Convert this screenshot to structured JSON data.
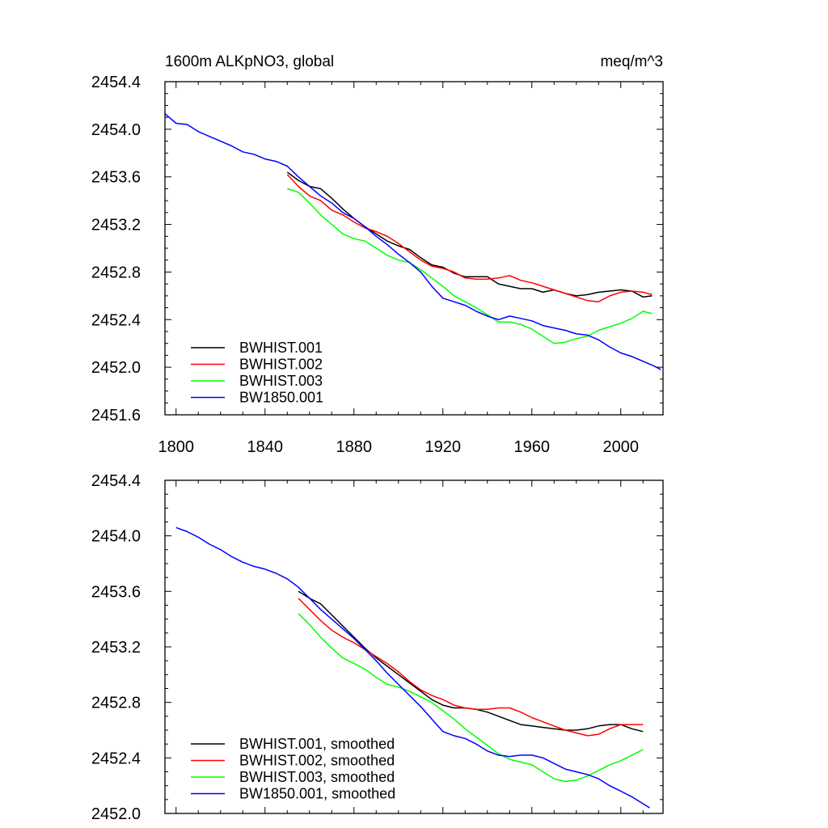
{
  "chart_data": [
    {
      "type": "line",
      "title": "1600m ALKpNO3, global",
      "units": "meq/m^3",
      "xlim": [
        1795,
        2019
      ],
      "ylim": [
        2451.6,
        2454.4
      ],
      "x_ticks": [
        1800,
        1840,
        1880,
        1920,
        1960,
        2000
      ],
      "x_tick_labels": [
        "1800",
        "1840",
        "1880",
        "1920",
        "1960",
        "2000"
      ],
      "y_ticks": [
        2451.6,
        2452.0,
        2452.4,
        2452.8,
        2453.2,
        2453.6,
        2454.0,
        2454.4
      ],
      "y_tick_labels": [
        "2451.6",
        "2452.0",
        "2452.4",
        "2452.8",
        "2453.2",
        "2453.6",
        "2454.0",
        "2454.4"
      ],
      "legend_position": "bottom-left",
      "series": [
        {
          "name": "BWHIST.001",
          "color": "#000000",
          "x": [
            1850,
            1855,
            1860,
            1865,
            1870,
            1875,
            1880,
            1885,
            1890,
            1895,
            1900,
            1905,
            1910,
            1915,
            1920,
            1925,
            1930,
            1935,
            1940,
            1945,
            1950,
            1955,
            1960,
            1965,
            1970,
            1975,
            1980,
            1985,
            1990,
            1995,
            2000,
            2005,
            2010,
            2014
          ],
          "y": [
            2453.64,
            2453.57,
            2453.52,
            2453.5,
            2453.42,
            2453.33,
            2453.25,
            2453.18,
            2453.12,
            2453.06,
            2453.02,
            2452.99,
            2452.92,
            2452.86,
            2452.84,
            2452.79,
            2452.76,
            2452.76,
            2452.76,
            2452.7,
            2452.68,
            2452.66,
            2452.66,
            2452.63,
            2452.65,
            2452.62,
            2452.6,
            2452.61,
            2452.63,
            2452.64,
            2452.65,
            2452.64,
            2452.59,
            2452.6
          ]
        },
        {
          "name": "BWHIST.002",
          "color": "#ff0000",
          "x": [
            1850,
            1855,
            1860,
            1865,
            1870,
            1875,
            1880,
            1885,
            1890,
            1895,
            1900,
            1905,
            1910,
            1915,
            1920,
            1925,
            1930,
            1935,
            1940,
            1945,
            1950,
            1955,
            1960,
            1965,
            1970,
            1975,
            1980,
            1985,
            1990,
            1995,
            2000,
            2005,
            2010,
            2014
          ],
          "y": [
            2453.62,
            2453.52,
            2453.44,
            2453.4,
            2453.32,
            2453.28,
            2453.22,
            2453.17,
            2453.14,
            2453.1,
            2453.04,
            2452.97,
            2452.9,
            2452.85,
            2452.83,
            2452.8,
            2452.75,
            2452.74,
            2452.74,
            2452.75,
            2452.77,
            2452.73,
            2452.71,
            2452.68,
            2452.65,
            2452.62,
            2452.59,
            2452.56,
            2452.55,
            2452.6,
            2452.63,
            2452.64,
            2452.63,
            2452.61
          ]
        },
        {
          "name": "BWHIST.003",
          "color": "#00ff00",
          "x": [
            1850,
            1855,
            1860,
            1865,
            1870,
            1875,
            1880,
            1885,
            1890,
            1895,
            1900,
            1905,
            1910,
            1915,
            1920,
            1925,
            1930,
            1935,
            1940,
            1945,
            1950,
            1955,
            1960,
            1965,
            1970,
            1975,
            1980,
            1985,
            1990,
            1995,
            2000,
            2005,
            2010,
            2014
          ],
          "y": [
            2453.5,
            2453.47,
            2453.38,
            2453.28,
            2453.2,
            2453.12,
            2453.08,
            2453.06,
            2453.0,
            2452.94,
            2452.9,
            2452.88,
            2452.82,
            2452.75,
            2452.68,
            2452.6,
            2452.55,
            2452.5,
            2452.44,
            2452.38,
            2452.38,
            2452.36,
            2452.32,
            2452.26,
            2452.2,
            2452.21,
            2452.24,
            2452.26,
            2452.31,
            2452.34,
            2452.37,
            2452.41,
            2452.47,
            2452.45
          ]
        },
        {
          "name": "BW1850.001",
          "color": "#0000ff",
          "x": [
            1795,
            1800,
            1805,
            1810,
            1815,
            1820,
            1825,
            1830,
            1835,
            1840,
            1845,
            1850,
            1855,
            1860,
            1865,
            1870,
            1875,
            1880,
            1885,
            1890,
            1895,
            1900,
            1905,
            1910,
            1915,
            1920,
            1925,
            1930,
            1935,
            1940,
            1945,
            1950,
            1955,
            1960,
            1965,
            1970,
            1975,
            1980,
            1985,
            1990,
            1995,
            2000,
            2005,
            2010,
            2015,
            2018
          ],
          "y": [
            2454.13,
            2454.05,
            2454.04,
            2453.98,
            2453.94,
            2453.9,
            2453.86,
            2453.81,
            2453.79,
            2453.75,
            2453.73,
            2453.69,
            2453.6,
            2453.52,
            2453.44,
            2453.38,
            2453.3,
            2453.25,
            2453.18,
            2453.1,
            2453.03,
            2452.95,
            2452.88,
            2452.8,
            2452.68,
            2452.58,
            2452.55,
            2452.52,
            2452.47,
            2452.43,
            2452.4,
            2452.43,
            2452.41,
            2452.39,
            2452.35,
            2452.33,
            2452.31,
            2452.28,
            2452.27,
            2452.23,
            2452.17,
            2452.12,
            2452.09,
            2452.05,
            2452.01,
            2451.98
          ]
        }
      ]
    },
    {
      "type": "line",
      "xlim": [
        1795,
        2019
      ],
      "ylim": [
        2452.0,
        2454.4
      ],
      "x_ticks": [
        1800,
        1840,
        1880,
        1920,
        1960,
        2000
      ],
      "y_ticks": [
        2452.0,
        2452.4,
        2452.8,
        2453.2,
        2453.6,
        2454.0,
        2454.4
      ],
      "y_tick_labels": [
        "2452.0",
        "2452.4",
        "2452.8",
        "2453.2",
        "2453.6",
        "2454.0",
        "2454.4"
      ],
      "legend_position": "bottom-left",
      "series": [
        {
          "name": "BWHIST.001, smoothed",
          "color": "#000000",
          "x": [
            1855,
            1860,
            1865,
            1870,
            1875,
            1880,
            1885,
            1890,
            1895,
            1900,
            1905,
            1910,
            1915,
            1920,
            1925,
            1930,
            1935,
            1940,
            1945,
            1950,
            1955,
            1960,
            1965,
            1970,
            1975,
            1980,
            1985,
            1990,
            1995,
            2000,
            2005,
            2010
          ],
          "y": [
            2453.6,
            2453.55,
            2453.51,
            2453.43,
            2453.35,
            2453.27,
            2453.19,
            2453.12,
            2453.06,
            2453.0,
            2452.94,
            2452.88,
            2452.82,
            2452.78,
            2452.76,
            2452.76,
            2452.75,
            2452.73,
            2452.7,
            2452.67,
            2452.64,
            2452.63,
            2452.62,
            2452.61,
            2452.6,
            2452.6,
            2452.61,
            2452.63,
            2452.64,
            2452.64,
            2452.61,
            2452.59
          ]
        },
        {
          "name": "BWHIST.002, smoothed",
          "color": "#ff0000",
          "x": [
            1855,
            1860,
            1865,
            1870,
            1875,
            1880,
            1885,
            1890,
            1895,
            1900,
            1905,
            1910,
            1915,
            1920,
            1925,
            1930,
            1935,
            1940,
            1945,
            1950,
            1955,
            1960,
            1965,
            1970,
            1975,
            1980,
            1985,
            1990,
            1995,
            2000,
            2005,
            2010
          ],
          "y": [
            2453.55,
            2453.47,
            2453.39,
            2453.32,
            2453.27,
            2453.23,
            2453.18,
            2453.13,
            2453.08,
            2453.02,
            2452.95,
            2452.89,
            2452.85,
            2452.82,
            2452.78,
            2452.76,
            2452.75,
            2452.75,
            2452.76,
            2452.76,
            2452.73,
            2452.69,
            2452.66,
            2452.63,
            2452.6,
            2452.58,
            2452.56,
            2452.57,
            2452.61,
            2452.64,
            2452.64,
            2452.64
          ]
        },
        {
          "name": "BWHIST.003, smoothed",
          "color": "#00ff00",
          "x": [
            1855,
            1860,
            1865,
            1870,
            1875,
            1880,
            1885,
            1890,
            1895,
            1900,
            1905,
            1910,
            1915,
            1920,
            1925,
            1930,
            1935,
            1940,
            1945,
            1950,
            1955,
            1960,
            1965,
            1970,
            1975,
            1980,
            1985,
            1990,
            1995,
            2000,
            2005,
            2010
          ],
          "y": [
            2453.44,
            2453.36,
            2453.27,
            2453.19,
            2453.12,
            2453.08,
            2453.04,
            2452.98,
            2452.93,
            2452.91,
            2452.88,
            2452.84,
            2452.8,
            2452.74,
            2452.68,
            2452.61,
            2452.55,
            2452.49,
            2452.43,
            2452.39,
            2452.37,
            2452.35,
            2452.3,
            2452.25,
            2452.23,
            2452.24,
            2452.27,
            2452.31,
            2452.35,
            2452.38,
            2452.42,
            2452.46
          ]
        },
        {
          "name": "BW1850.001, smoothed",
          "color": "#0000ff",
          "x": [
            1800,
            1805,
            1810,
            1815,
            1820,
            1825,
            1830,
            1835,
            1840,
            1845,
            1850,
            1855,
            1860,
            1865,
            1870,
            1875,
            1880,
            1885,
            1890,
            1895,
            1900,
            1905,
            1910,
            1915,
            1920,
            1925,
            1930,
            1935,
            1940,
            1945,
            1950,
            1955,
            1960,
            1965,
            1970,
            1975,
            1980,
            1985,
            1990,
            1995,
            2000,
            2005,
            2010,
            2013
          ],
          "y": [
            2454.06,
            2454.03,
            2453.99,
            2453.94,
            2453.9,
            2453.85,
            2453.81,
            2453.78,
            2453.76,
            2453.73,
            2453.69,
            2453.63,
            2453.55,
            2453.47,
            2453.4,
            2453.33,
            2453.26,
            2453.18,
            2453.1,
            2453.01,
            2452.93,
            2452.85,
            2452.77,
            2452.68,
            2452.59,
            2452.56,
            2452.54,
            2452.5,
            2452.45,
            2452.42,
            2452.41,
            2452.42,
            2452.42,
            2452.4,
            2452.36,
            2452.32,
            2452.3,
            2452.28,
            2452.25,
            2452.2,
            2452.16,
            2452.12,
            2452.07,
            2452.04
          ]
        }
      ]
    }
  ]
}
